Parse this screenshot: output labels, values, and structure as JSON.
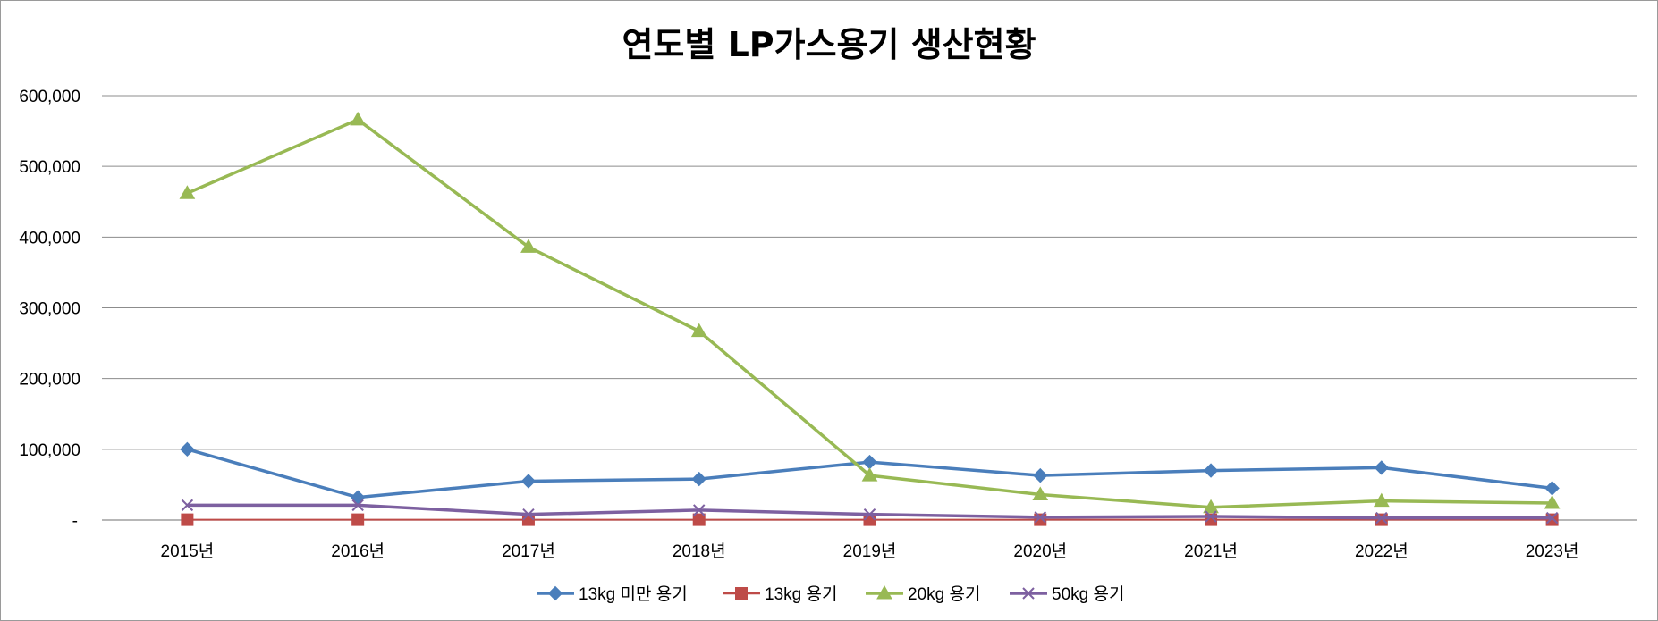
{
  "chart_data": {
    "type": "line",
    "title": "연도별 LP가스용기 생산현황",
    "xlabel": "",
    "ylabel": "",
    "categories": [
      "2015년",
      "2016년",
      "2017년",
      "2018년",
      "2019년",
      "2020년",
      "2021년",
      "2022년",
      "2023년"
    ],
    "y_ticks": [
      "-",
      "100,000",
      "200,000",
      "300,000",
      "400,000",
      "500,000",
      "600,000"
    ],
    "ylim": [
      0,
      600000
    ],
    "grid": true,
    "legend_position": "bottom",
    "series": [
      {
        "name": "13kg 미만 용기",
        "color": "#4a7ebb",
        "marker": "diamond",
        "values": [
          100000,
          32000,
          55000,
          58000,
          82000,
          63000,
          70000,
          74000,
          45000
        ]
      },
      {
        "name": "13kg 용기",
        "color": "#be4b48",
        "marker": "square",
        "values": [
          500,
          500,
          500,
          500,
          500,
          500,
          500,
          500,
          500
        ]
      },
      {
        "name": "20kg 용기",
        "color": "#98b954",
        "marker": "triangle",
        "values": [
          462000,
          566000,
          386000,
          267000,
          63000,
          36000,
          18000,
          27000,
          24000
        ]
      },
      {
        "name": "50kg 용기",
        "color": "#7d60a0",
        "marker": "x",
        "values": [
          21000,
          21000,
          8000,
          14000,
          8000,
          4000,
          5000,
          3000,
          3000
        ]
      }
    ]
  }
}
